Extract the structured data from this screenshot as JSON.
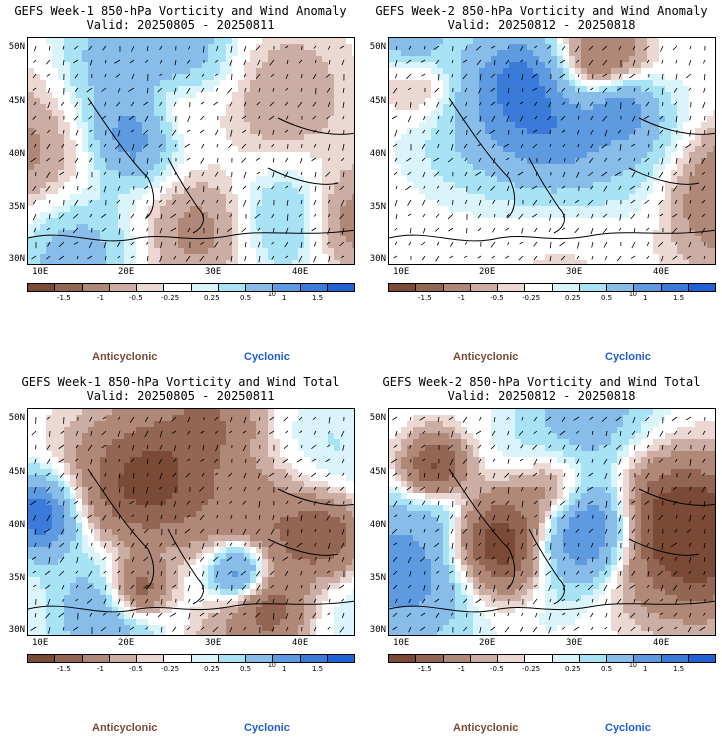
{
  "panels": [
    {
      "title": "GEFS Week-1 850-hPa Vorticity and Wind Anomaly",
      "valid": "Valid: 20250805 - 20250811"
    },
    {
      "title": "GEFS Week-2 850-hPa Vorticity and Wind Anomaly",
      "valid": "Valid: 20250812 - 20250818"
    },
    {
      "title": "GEFS Week-1 850-hPa Vorticity and Wind Total",
      "valid": "Valid: 20250805 - 20250811"
    },
    {
      "title": "GEFS Week-2 850-hPa Vorticity and Wind Total",
      "valid": "Valid: 20250812 - 20250818"
    }
  ],
  "lat_labels": [
    "50N",
    "45N",
    "40N",
    "35N",
    "30N"
  ],
  "lon_labels": [
    "10E",
    "20E",
    "30E",
    "40E"
  ],
  "colorbar": {
    "labels": [
      "-1.5",
      "-1",
      "-0.5",
      "-0.25",
      "0.25",
      "0.5",
      "1",
      "1.5"
    ],
    "ref_label": "10",
    "colors": [
      "#7b4a37",
      "#936553",
      "#b08878",
      "#ccada3",
      "#ebd8d2",
      "#ffffff",
      "#d9f4fb",
      "#a8e3f5",
      "#87bde8",
      "#5e9ae0",
      "#3a7ad8",
      "#1f62d4"
    ]
  },
  "legend": {
    "anticyclonic": "Anticyclonic",
    "cyclonic": "Cyclonic",
    "anticyclonic_color": "#7b4a37",
    "cyclonic_color": "#1f5bd8"
  }
}
